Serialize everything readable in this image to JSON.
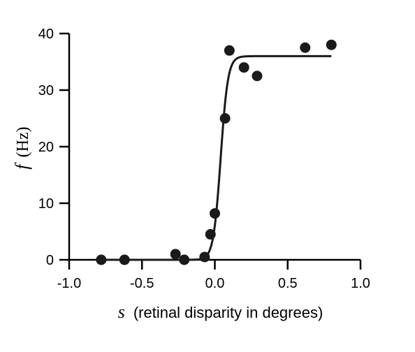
{
  "chart_data": {
    "type": "scatter",
    "xlim": [
      -1.0,
      1.0
    ],
    "ylim": [
      0,
      40
    ],
    "x_ticks": [
      -1.0,
      -0.5,
      0.0,
      0.5,
      1.0
    ],
    "x_tick_labels": [
      "-1.0",
      "-0.5",
      "0.0",
      "0.5",
      "1.0"
    ],
    "y_ticks": [
      0,
      10,
      20,
      30,
      40
    ],
    "y_tick_labels": [
      "0",
      "10",
      "20",
      "30",
      "40"
    ],
    "xlabel": {
      "symbol": "s",
      "text": "(retinal disparity in degrees)"
    },
    "ylabel": {
      "symbol": "f",
      "text": "(Hz)"
    },
    "grid": false,
    "legend": "none",
    "points": {
      "x": [
        -0.78,
        -0.62,
        -0.27,
        -0.21,
        -0.07,
        -0.03,
        0.0,
        0.07,
        0.1,
        0.2,
        0.29,
        0.62,
        0.8
      ],
      "y": [
        0.0,
        0.0,
        1.0,
        0.0,
        0.5,
        4.5,
        8.2,
        25.0,
        37.0,
        34.0,
        32.5,
        37.5,
        38.0
      ]
    },
    "fit_curve": {
      "model": "logistic",
      "max": 36,
      "midpoint": 0.04,
      "slope": 0.025,
      "x_range": [
        -0.8,
        0.8
      ]
    },
    "colors": {
      "marks": "#1a1a1a",
      "axes": "#000000"
    }
  }
}
